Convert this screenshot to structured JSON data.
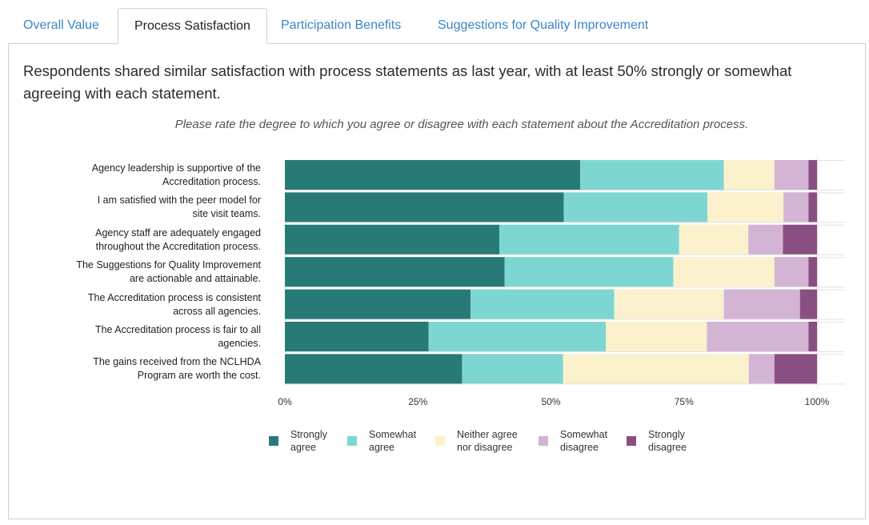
{
  "tabs": [
    {
      "label": "Overall Value",
      "active": false
    },
    {
      "label": "Process Satisfaction",
      "active": true
    },
    {
      "label": "Participation Benefits",
      "active": false
    },
    {
      "label": "Suggestions for Quality Improvement",
      "active": false
    }
  ],
  "headline": "Respondents shared similar satisfaction with process statements as last year, with at least 50% strongly or somewhat agreeing with each statement.",
  "question": "Please rate the degree to which you agree or disagree with each statement about the Accreditation process.",
  "colors": {
    "strongly_agree": "#287a77",
    "somewhat_agree": "#7dd6d2",
    "neither": "#fbf1cd",
    "somewhat_disagree": "#d4b4d4",
    "strongly_disagree": "#8a4f82"
  },
  "legend": [
    {
      "label_line1": "Strongly",
      "label_line2": "agree",
      "color": "#287a77"
    },
    {
      "label_line1": "Somewhat",
      "label_line2": "agree",
      "color": "#7dd6d2"
    },
    {
      "label_line1": "Neither agree",
      "label_line2": "nor disagree",
      "color": "#fbf1cd"
    },
    {
      "label_line1": "Somewhat",
      "label_line2": "disagree",
      "color": "#d4b4d4"
    },
    {
      "label_line1": "Strongly",
      "label_line2": "disagree",
      "color": "#8a4f82"
    }
  ],
  "chart_data": {
    "type": "bar",
    "orientation": "horizontal",
    "stacked": true,
    "xlim": [
      0,
      100
    ],
    "x_ticks": [
      "0%",
      "25%",
      "50%",
      "75%",
      "100%"
    ],
    "grid": true,
    "legend_position": "bottom",
    "categories": [
      [
        "Agency leadership is supportive of the",
        "Accreditation process."
      ],
      [
        "I am satisfied with the peer model for",
        "site visit teams."
      ],
      [
        "Agency staff are adequately engaged",
        "throughout the Accreditation process."
      ],
      [
        "The Suggestions for Quality Improvement",
        "are actionable and attainable."
      ],
      [
        "The Accreditation process is consistent",
        "across all agencies."
      ],
      [
        "The Accreditation process is fair to all",
        "agencies."
      ],
      [
        "The gains received from the NCLHDA",
        "Program are worth the cost."
      ]
    ],
    "series": [
      {
        "name": "Strongly agree",
        "values": [
          55.5,
          52.4,
          40.3,
          41.3,
          34.9,
          27.0,
          33.3
        ]
      },
      {
        "name": "Somewhat agree",
        "values": [
          27.0,
          27.0,
          33.8,
          31.7,
          27.0,
          33.3,
          19.0
        ]
      },
      {
        "name": "Neither agree nor disagree",
        "values": [
          9.5,
          14.3,
          13.0,
          19.0,
          20.6,
          19.0,
          34.9
        ]
      },
      {
        "name": "Somewhat disagree",
        "values": [
          6.4,
          4.7,
          6.5,
          6.4,
          14.3,
          19.1,
          4.8
        ]
      },
      {
        "name": "Strongly disagree",
        "values": [
          1.6,
          1.6,
          6.4,
          1.6,
          3.2,
          1.6,
          8.0
        ]
      }
    ]
  }
}
